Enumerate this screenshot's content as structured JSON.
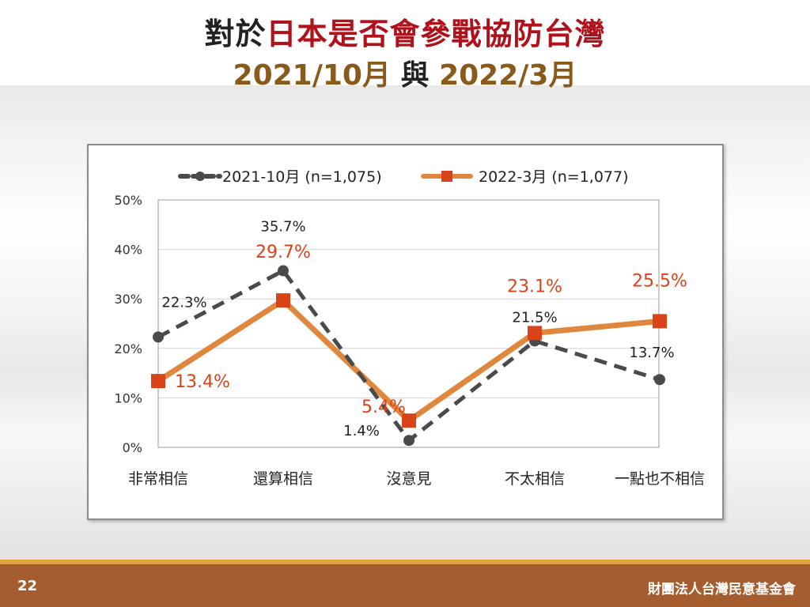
{
  "title": {
    "prefix": "對於",
    "highlight": "日本是否會參戰協防台灣",
    "date1": "2021/10月",
    "conj": " 與 ",
    "date2": "2022/3月"
  },
  "footer": {
    "page_number": "22",
    "organization": "財團法人台灣民意基金會"
  },
  "colors": {
    "series1": "#4a4a4a",
    "series2": "#e0873e",
    "series2_marker": "#d9431a",
    "series2_label": "#d9431a",
    "title_highlight": "#b0121b",
    "footer": "#a55c2e"
  },
  "chart_data": {
    "type": "line",
    "categories": [
      "非常相信",
      "還算相信",
      "沒意見",
      "不太相信",
      "一點也不相信"
    ],
    "series": [
      {
        "name": "2021-10月  (n=1,075)",
        "values": [
          22.3,
          35.7,
          1.4,
          21.5,
          13.7
        ],
        "labels": [
          "22.3%",
          "35.7%",
          "1.4%",
          "21.5%",
          "13.7%"
        ],
        "style": "dashed",
        "marker": "circle"
      },
      {
        "name": "2022-3月  (n=1,077)",
        "values": [
          13.4,
          29.7,
          5.4,
          23.1,
          25.5
        ],
        "labels": [
          "13.4%",
          "29.7%",
          "5.4%",
          "23.1%",
          "25.5%"
        ],
        "style": "solid",
        "marker": "square"
      }
    ],
    "ylim": [
      0,
      50
    ],
    "yticks": [
      "0%",
      "10%",
      "20%",
      "30%",
      "40%",
      "50%"
    ],
    "grid": true,
    "legend": "top"
  }
}
